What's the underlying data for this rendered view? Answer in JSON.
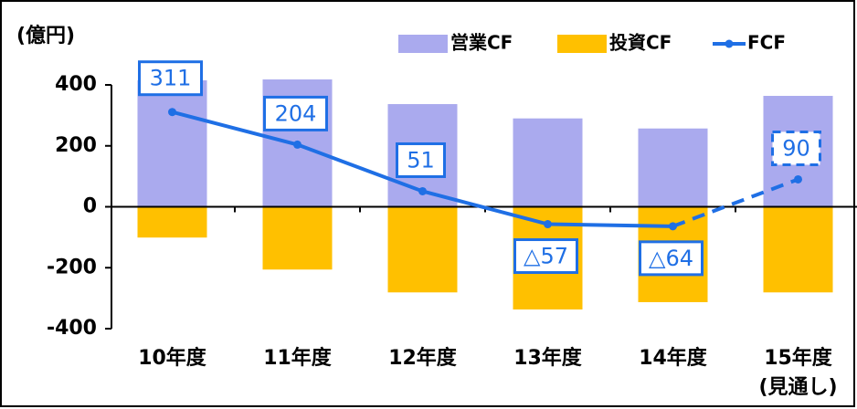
{
  "chart_data": {
    "type": "bar_line",
    "y_label": "(億円)",
    "categories": [
      "10年度",
      "11年度",
      "12年度",
      "13年度",
      "14年度",
      "15年度\n(見通し)"
    ],
    "series": [
      {
        "name": "営業CF",
        "type": "bar",
        "color": "#aaaaee",
        "values": [
          415,
          418,
          337,
          290,
          257,
          364
        ]
      },
      {
        "name": "投資CF",
        "type": "bar",
        "color": "#ffc000",
        "values": [
          -101,
          -206,
          -281,
          -337,
          -313,
          -281
        ]
      },
      {
        "name": "FCF",
        "type": "line",
        "color": "#1f6fe5",
        "values": [
          311,
          204,
          51,
          -57,
          -64,
          90
        ],
        "value_labels": [
          "311",
          "204",
          "51",
          "△57",
          "△64",
          "90"
        ],
        "dashed_from_index": 4
      }
    ],
    "ylim": [
      -400,
      400
    ],
    "yticks": [
      -400,
      -200,
      0,
      200,
      400
    ],
    "legend": "top-right"
  }
}
